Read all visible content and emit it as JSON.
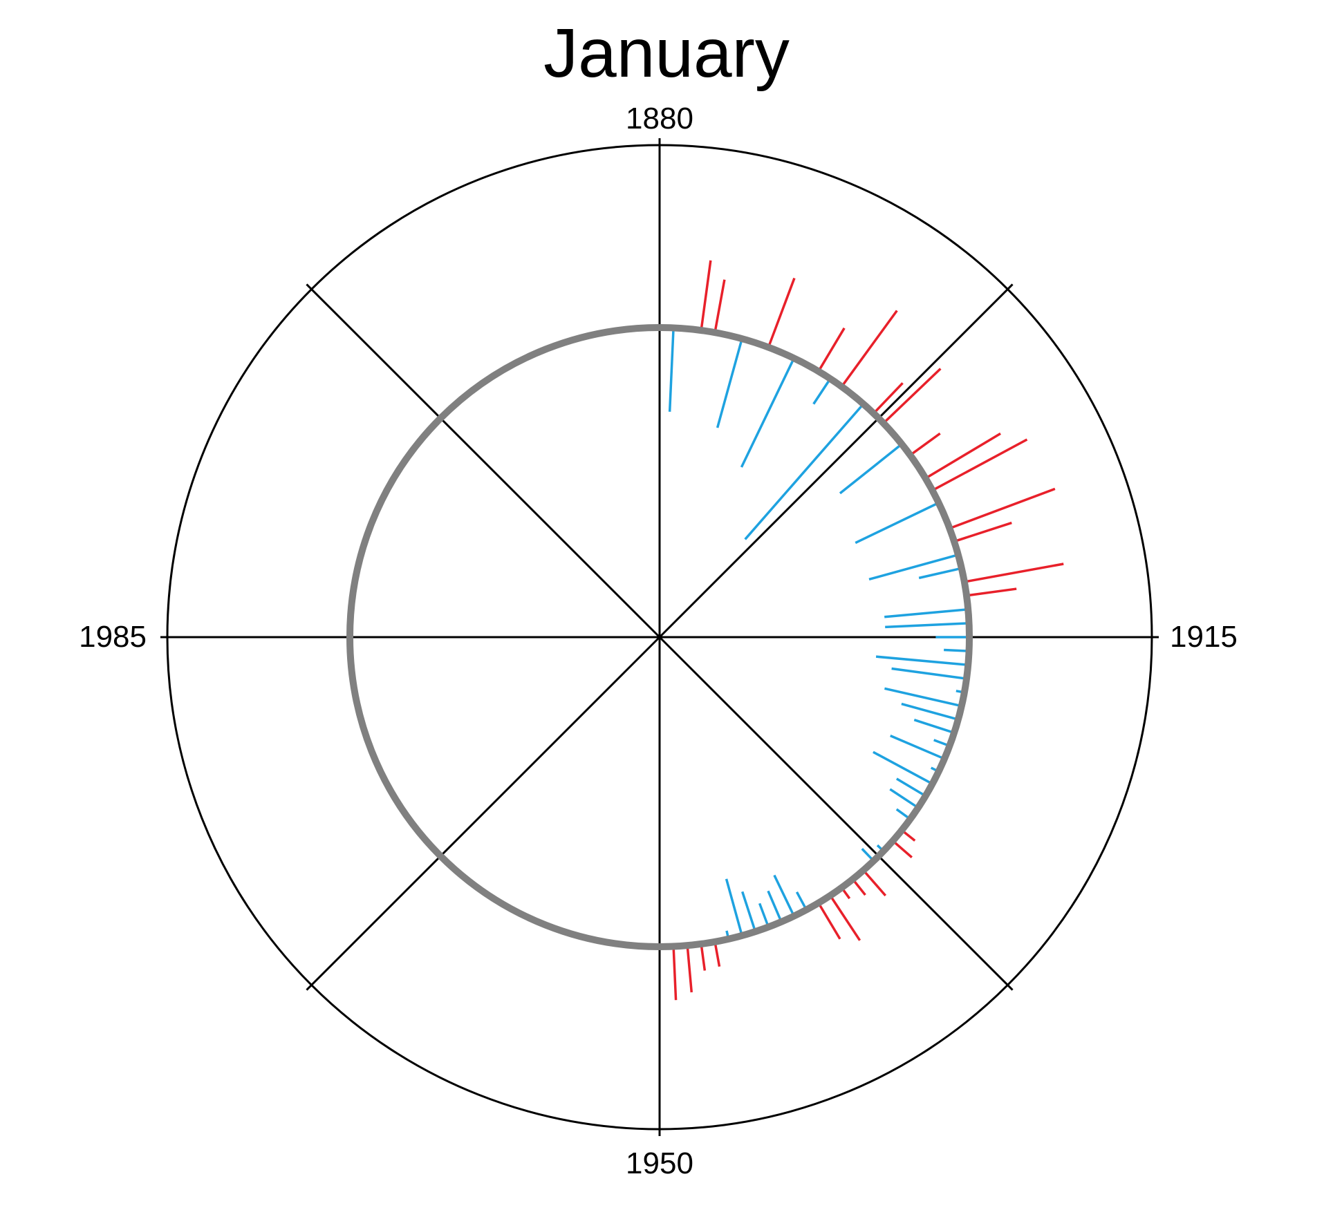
{
  "chart_data": {
    "type": "polar-bar",
    "title": "January",
    "angle_axis": {
      "start_year": 1880,
      "direction": "clockwise",
      "years_per_full_turn": 140,
      "tick_labels": [
        "1880",
        "1915",
        "1950",
        "1985"
      ]
    },
    "baseline_anomaly": 0,
    "colors": {
      "positive": "#e8202a",
      "negative": "#1ea2e0",
      "baseline_ring": "#808080",
      "axes": "#000000"
    },
    "series": [
      {
        "name": "",
        "note": "",
        "x": [
          1881,
          1883,
          1884,
          1886,
          1888,
          1890,
          1892,
          1893,
          1894,
          1896,
          1897,
          1898,
          1900,
          1901,
          1903,
          1904,
          1905,
          1907,
          1908,
          1909,
          1910,
          1911,
          1912,
          1913,
          1914,
          1915,
          1916,
          1917,
          1918,
          1919,
          1920,
          1921,
          1922,
          1923,
          1924,
          1925,
          1926,
          1927,
          1928,
          1929,
          1930,
          1931,
          1932,
          1933,
          1934,
          1935,
          1936,
          1937,
          1938,
          1939,
          1940,
          1941,
          1942,
          1943,
          1944,
          1945,
          1946,
          1947,
          1948,
          1949
        ],
        "values": [
          -0.5,
          0.42,
          0.32,
          -0.55,
          0.44,
          -0.72,
          0.3,
          -0.18,
          0.56,
          -1.07,
          0.25,
          0.47,
          -0.47,
          0.22,
          0.52,
          0.64,
          -0.55,
          0.67,
          0.36,
          -0.55,
          -0.26,
          0.6,
          0.3,
          -0.5,
          -0.5,
          -0.2,
          -0.15,
          -0.55,
          -0.45,
          -0.05,
          -0.47,
          -0.35,
          -0.25,
          -0.1,
          -0.35,
          -0.05,
          -0.4,
          -0.2,
          -0.2,
          -0.1,
          0.1,
          0.15,
          -0.05,
          -0.1,
          0.2,
          0.12,
          0.08,
          0.32,
          0.25,
          -0.12,
          -0.27,
          -0.2,
          -0.15,
          -0.25,
          -0.35,
          -0.05,
          0.15,
          0.16,
          0.28,
          0.32
        ]
      }
    ]
  }
}
